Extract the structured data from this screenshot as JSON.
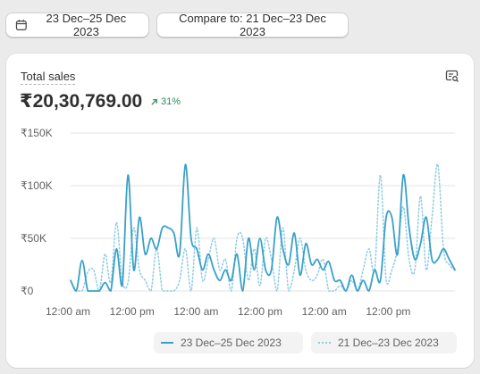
{
  "toolbar": {
    "date_range_label": "23 Dec–25 Dec 2023",
    "compare_label": "Compare to: 21 Dec–23 Dec 2023"
  },
  "card": {
    "metric_label": "Total sales",
    "metric_value": "₹20,30,769.00",
    "change_text": "31%",
    "change_direction": "up"
  },
  "colors": {
    "current_series": "#3aa0c8",
    "comparison_series": "#8ccbe3",
    "positive_change": "#2f8a5b"
  },
  "legend": {
    "current": "23 Dec–25 Dec 2023",
    "comparison": "21 Dec–23 Dec 2023"
  },
  "chart_data": {
    "type": "line",
    "ylim": [
      0,
      150000
    ],
    "y_ticks": [
      {
        "value": 150000,
        "label": "₹150K"
      },
      {
        "value": 100000,
        "label": "₹100K"
      },
      {
        "value": 50000,
        "label": "₹50K"
      },
      {
        "value": 0,
        "label": "₹0"
      }
    ],
    "x_range": [
      0,
      72
    ],
    "x_ticks": [
      {
        "hour": 0,
        "label": "12:00 am"
      },
      {
        "hour": 12,
        "label": "12:00 pm"
      },
      {
        "hour": 24,
        "label": "12:00 am"
      },
      {
        "hour": 36,
        "label": "12:00 pm"
      },
      {
        "hour": 48,
        "label": "12:00 am"
      },
      {
        "hour": 60,
        "label": "12:00 pm"
      }
    ],
    "grid": "horizontal",
    "legend_position": "bottom",
    "series": [
      {
        "name": "23 Dec–25 Dec 2023",
        "style": "solid",
        "values": [
          10000,
          0,
          29000,
          0,
          0,
          0,
          8000,
          0,
          40000,
          5000,
          110000,
          20000,
          70000,
          35000,
          50000,
          40000,
          60000,
          60000,
          55000,
          35000,
          120000,
          50000,
          40000,
          20000,
          35000,
          20000,
          10000,
          20000,
          10000,
          35000,
          0,
          50000,
          20000,
          50000,
          20000,
          20000,
          70000,
          40000,
          25000,
          55000,
          15000,
          45000,
          25000,
          30000,
          20000,
          28000,
          10000,
          10000,
          0,
          15000,
          0,
          10000,
          0,
          20000,
          10000,
          70000,
          70000,
          35000,
          110000,
          60000,
          30000,
          45000,
          70000,
          30000,
          30000,
          40000,
          30000,
          20000
        ]
      },
      {
        "name": "21 Dec–23 Dec 2023",
        "style": "dotted",
        "values": [
          10000,
          0,
          0,
          18000,
          20000,
          0,
          35000,
          8000,
          65000,
          10000,
          8000,
          60000,
          20000,
          10000,
          0,
          40000,
          0,
          0,
          0,
          10000,
          40000,
          0,
          60000,
          10000,
          30000,
          50000,
          20000,
          30000,
          0,
          50000,
          50000,
          10000,
          40000,
          5000,
          50000,
          30000,
          0,
          60000,
          0,
          20000,
          50000,
          20000,
          10000,
          15000,
          30000,
          0,
          0,
          5000,
          0,
          10000,
          0,
          20000,
          40000,
          20000,
          110000,
          10000,
          20000,
          40000,
          80000,
          30000,
          20000,
          90000,
          20000,
          70000,
          120000,
          40000,
          25000,
          20000
        ]
      }
    ]
  }
}
